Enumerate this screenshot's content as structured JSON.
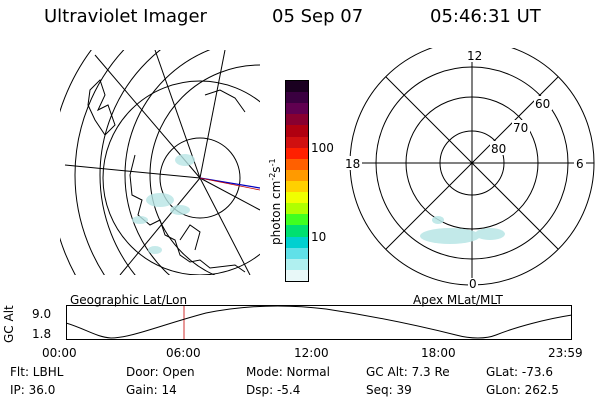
{
  "header": {
    "title": "Ultraviolet Imager",
    "date": "05 Sep 07",
    "time": "05:46:31 UT"
  },
  "colorbar": {
    "unit_label": "photon cm",
    "unit_sup1": "-2",
    "unit_mid": "s",
    "unit_sup2": "-1",
    "ticks": [
      "100",
      "10"
    ],
    "colors": [
      "#1a0020",
      "#3a0040",
      "#600050",
      "#880030",
      "#b00010",
      "#d01010",
      "#ff2000",
      "#ff6000",
      "#ff9a00",
      "#ffd000",
      "#f0ff00",
      "#b0ff00",
      "#40ff20",
      "#00e070",
      "#00d0d0",
      "#60e0e8",
      "#b0f0f0",
      "#e8f8f8"
    ]
  },
  "left_map": {
    "label": "Geographic Lat/Lon"
  },
  "right_map": {
    "label": "Apex MLat/MLT",
    "mlt_labels": {
      "top": "12",
      "left": "18",
      "right": "6",
      "bottom": "0"
    },
    "lat_labels": [
      "60",
      "70",
      "80"
    ]
  },
  "altitude_plot": {
    "ylabel": "GC Alt",
    "yticks": [
      "9.0",
      "1.8"
    ],
    "xticks": [
      "00:00",
      "06:00",
      "12:00",
      "18:00",
      "23:59"
    ],
    "marker_time": "05:46"
  },
  "info": {
    "flt": "Flt: LBHL",
    "ip": "IP: 36.0",
    "door": "Door: Open",
    "gain": "Gain: 14",
    "mode": "Mode: Normal",
    "dsp": "Dsp:   -5.4",
    "gcalt": "GC Alt: 7.3 Re",
    "seq": "Seq: 39",
    "glat": "GLat: -73.6",
    "glon": "GLon: 262.5"
  },
  "colors": {
    "marker": "#d03030",
    "frame": "#000000",
    "aurora": "#b8e6e6"
  }
}
